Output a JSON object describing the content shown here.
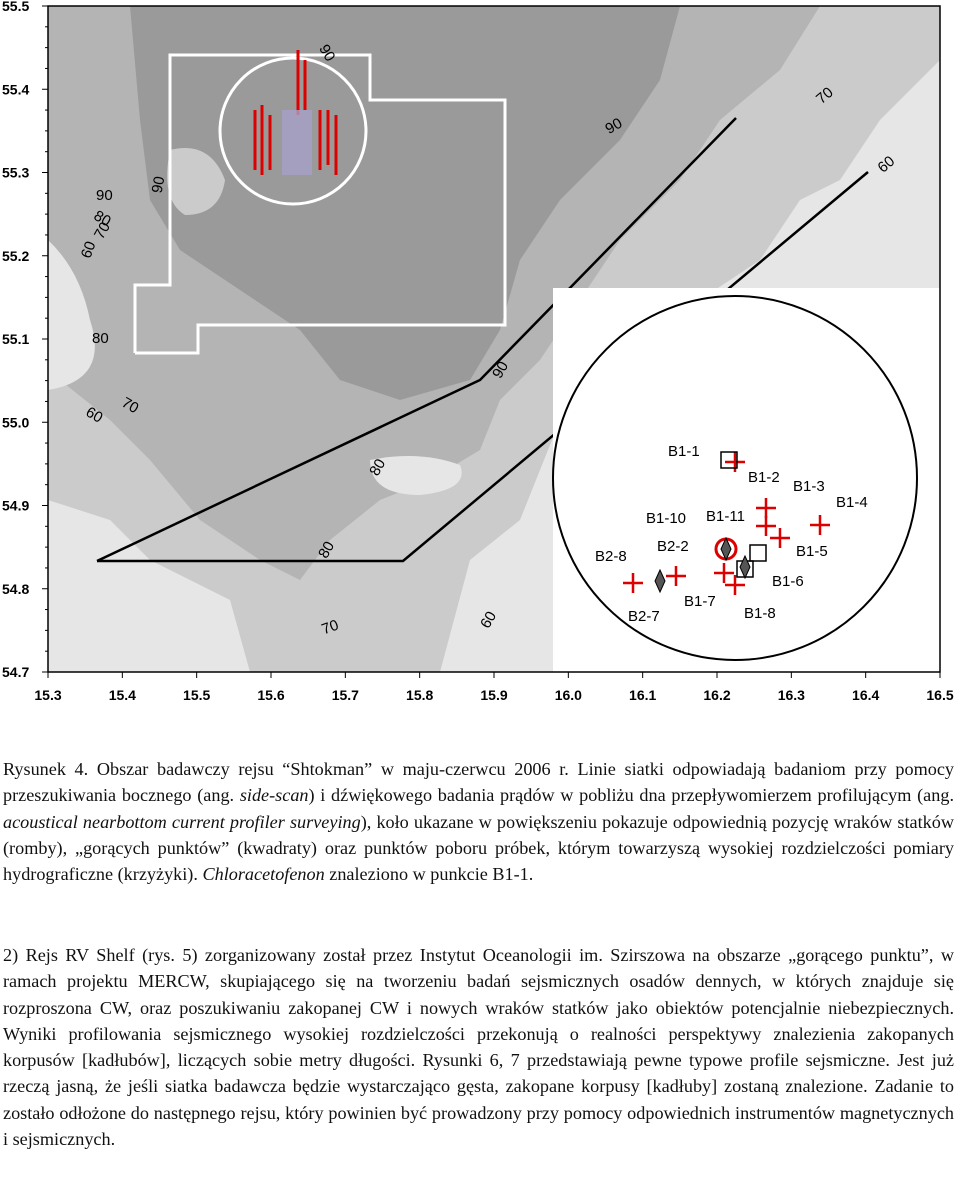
{
  "figure": {
    "y_tick_labels": [
      "55.5",
      "55.4",
      "55.3",
      "55.2",
      "55.1",
      "55.0",
      "54.9",
      "54.8",
      "54.7"
    ],
    "x_tick_labels": [
      "15.3",
      "15.4",
      "15.5",
      "15.6",
      "15.7",
      "15.8",
      "15.9",
      "16.0",
      "16.1",
      "16.2",
      "16.3",
      "16.4",
      "16.5"
    ],
    "contour_labels": [
      "90",
      "90",
      "70",
      "60",
      "90",
      "90",
      "80",
      "70",
      "60",
      "80",
      "70",
      "60",
      "90",
      "80",
      "80",
      "70",
      "60"
    ],
    "station_labels": [
      "B1-1",
      "B1-2",
      "B1-3",
      "B1-4",
      "B1-10",
      "B1-11",
      "B2-2",
      "B2-8",
      "B1-5",
      "B1-6",
      "B1-7",
      "B1-8",
      "B2-7"
    ]
  },
  "caption": {
    "part1": "Rysunek 4. Obszar badawczy rejsu “Shtokman” w maju-czerwcu 2006 r. Linie siatki odpowiadają badaniom przy pomocy przeszukiwania bocznego (ang. ",
    "italic1": "side-scan",
    "part2": ") i dźwiękowego badania prądów w pobliżu dna przepływomierzem profilującym (ang. ",
    "italic2": "acoustical nearbottom current profiler surveying",
    "part3": "), koło ukazane w powiększeniu pokazuje odpowiednią pozycję wraków statków (romby), „gorących punktów” (kwadraty) oraz punktów poboru próbek, którym towarzyszą wysokiej rozdzielczości pomiary hydrograficzne (krzyżyki). ",
    "italic3": "Chloracetofenon",
    "part4": " znaleziono w punkcie B1-1."
  },
  "paragraph": "2) Rejs RV Shelf (rys. 5) zorganizowany został przez Instytut Oceanologii im. Szirszowa na obszarze „gorącego punktu”, w ramach projektu MERCW, skupiającego się na tworzeniu badań sejsmicznych osadów dennych, w których znajduje się rozproszona CW, oraz poszukiwaniu zakopanej CW i nowych wraków statków jako obiektów potencjalnie niebezpiecznych. Wyniki profilowania sejsmicznego wysokiej rozdzielczości przekonują o realności perspektywy znalezienia zakopanych korpusów [kadłubów], liczących sobie metry długości. Rysunki 6, 7 przedstawiają pewne typowe profile sejsmiczne. Jest już rzeczą jasną, że jeśli siatka badawcza będzie wystarczająco gęsta, zakopane korpusy [kadłuby] zostaną znalezione. Zadanie to zostało odłożone do następnego rejsu, który powinien być prowadzony przy pomocy odpowiednich instrumentów magnetycznych i sejsmicznych."
}
